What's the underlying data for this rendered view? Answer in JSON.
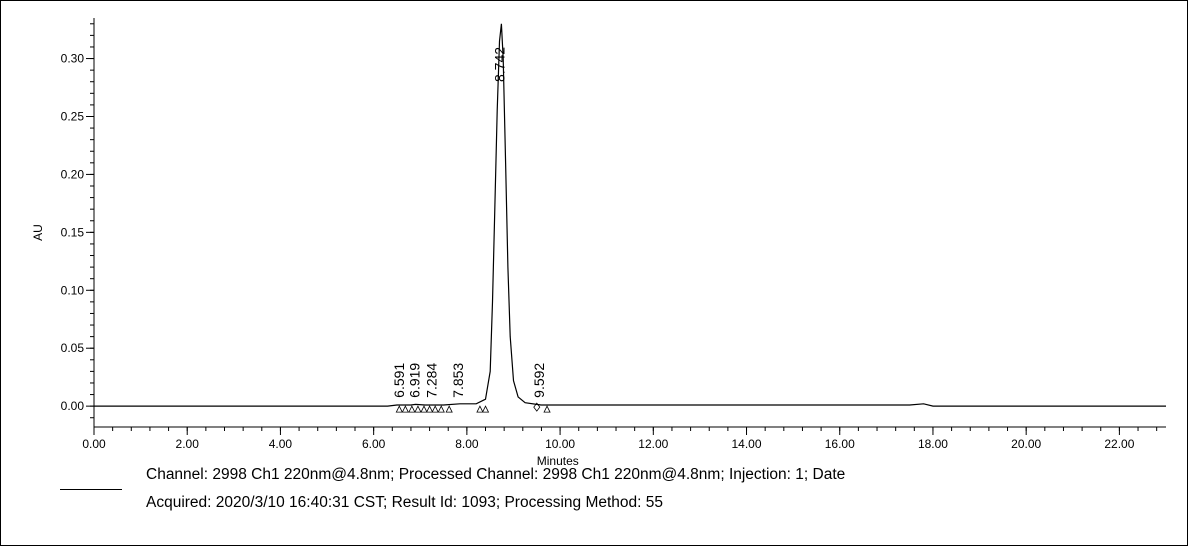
{
  "chart_data": {
    "type": "line",
    "title": "",
    "xlabel": "Minutes",
    "ylabel": "AU",
    "xlim": [
      0,
      23
    ],
    "ylim": [
      -0.018,
      0.335
    ],
    "x_ticks": [
      "0.00",
      "2.00",
      "4.00",
      "6.00",
      "8.00",
      "10.00",
      "12.00",
      "14.00",
      "16.00",
      "18.00",
      "20.00",
      "22.00"
    ],
    "y_ticks": [
      "0.00",
      "0.05",
      "0.10",
      "0.15",
      "0.20",
      "0.25",
      "0.30"
    ],
    "series": [
      {
        "x": [
          0,
          6.3,
          6.5,
          6.6,
          6.8,
          6.9,
          7.1,
          7.28,
          7.5,
          7.85,
          8.2,
          8.4,
          8.5,
          8.55,
          8.6,
          8.65,
          8.7,
          8.74,
          8.78,
          8.83,
          8.88,
          8.93,
          9.0,
          9.1,
          9.25,
          9.59,
          12.0,
          15.0,
          17.5,
          17.8,
          18.0,
          23.0
        ],
        "y": [
          0.0,
          0.0,
          0.001,
          0.001,
          0.001,
          0.0015,
          0.001,
          0.001,
          0.001,
          0.002,
          0.002,
          0.006,
          0.03,
          0.09,
          0.17,
          0.255,
          0.315,
          0.33,
          0.3,
          0.21,
          0.12,
          0.06,
          0.022,
          0.008,
          0.003,
          0.001,
          0.001,
          0.001,
          0.001,
          0.002,
          0.0,
          0.0
        ]
      }
    ],
    "peak_labels": [
      {
        "x": 6.591,
        "label": "6.591"
      },
      {
        "x": 6.919,
        "label": "6.919"
      },
      {
        "x": 7.284,
        "label": "7.284"
      },
      {
        "x": 7.853,
        "label": "7.853"
      },
      {
        "x": 8.742,
        "label": "8.742"
      },
      {
        "x": 9.592,
        "label": "9.592"
      }
    ],
    "markers": [
      {
        "x": 6.55,
        "kind": "triangle"
      },
      {
        "x": 6.68,
        "kind": "triangle"
      },
      {
        "x": 6.82,
        "kind": "triangle"
      },
      {
        "x": 6.95,
        "kind": "triangle"
      },
      {
        "x": 7.08,
        "kind": "triangle"
      },
      {
        "x": 7.2,
        "kind": "triangle"
      },
      {
        "x": 7.32,
        "kind": "triangle"
      },
      {
        "x": 7.45,
        "kind": "triangle"
      },
      {
        "x": 7.62,
        "kind": "triangle"
      },
      {
        "x": 8.28,
        "kind": "triangle"
      },
      {
        "x": 8.4,
        "kind": "triangle"
      },
      {
        "x": 9.5,
        "kind": "diamond"
      },
      {
        "x": 9.72,
        "kind": "triangle"
      }
    ]
  },
  "legend": {
    "line1": "Channel:  2998 Ch1 220nm@4.8nm;   Processed Channel: 2998 Ch1 220nm@4.8nm;   Injection: 1;   Date",
    "line2": "Acquired: 2020/3/10 16:40:31 CST;   Result Id: 1093;   Processing Method: 55"
  }
}
